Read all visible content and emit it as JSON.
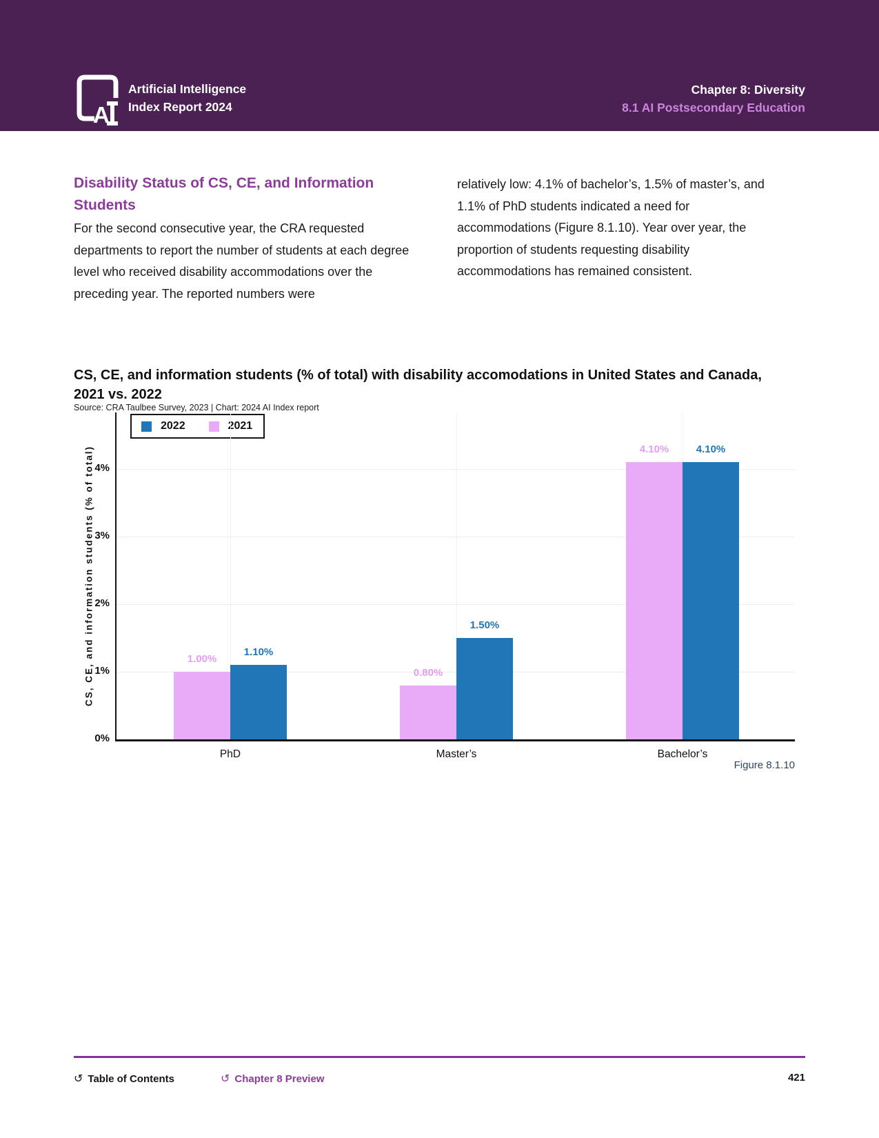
{
  "header": {
    "brand_line1": "Artificial Intelligence",
    "brand_line2": "Index Report 2024",
    "chapter": "Chapter 8: Diversity",
    "section": "8.1 AI Postsecondary Education",
    "bg_color": "#4a2152",
    "section_color": "#cb84dc"
  },
  "article": {
    "heading_line1": "Disability Status of CS, CE, and Information",
    "heading_line2": "Students",
    "heading_color": "#8d3b9b",
    "paragraph_left": "For the second consecutive year, the CRA requested departments to report the number of students at each degree level who received disability accommodations over the preceding year. The reported numbers were",
    "paragraph_right": "relatively low: 4.1% of bachelor’s, 1.5% of master’s, and 1.1% of PhD students indicated a need for accommodations (Figure 8.1.10). Year over year, the proportion of students requesting disability accommodations has remained consistent."
  },
  "figure": {
    "title_line1": "CS, CE, and information students (% of total) with disability accomodations in United States and Canada,",
    "title_line2": "2021 vs. 2022",
    "source": "Source: CRA Taulbee Survey, 2023 | Chart: 2024 AI Index report",
    "caption": "Figure 8.1.10"
  },
  "chart_data": {
    "type": "bar",
    "title": "CS, CE, and information students (% of total) with disability accomodations in United States and Canada, 2021 vs. 2022",
    "source": "Source: CRA Taulbee Survey, 2023 | Chart: 2024 AI Index report",
    "categories": [
      "PhD",
      "Master’s",
      "Bachelor’s"
    ],
    "series": [
      {
        "name": "2021",
        "color": "#e9abf7",
        "label_color": "#e49df3",
        "values": [
          1.0,
          0.8,
          4.1
        ],
        "labels": [
          "1.00%",
          "0.80%",
          "4.10%"
        ]
      },
      {
        "name": "2022",
        "color": "#2076b7",
        "label_color": "#2076b7",
        "values": [
          1.1,
          1.5,
          4.1
        ],
        "labels": [
          "1.10%",
          "1.50%",
          "4.10%"
        ]
      }
    ],
    "legend_order": [
      "2022",
      "2021"
    ],
    "ylabel": "CS, CE, and information students (% of total)",
    "yticks": [
      "0%",
      "1%",
      "2%",
      "3%",
      "4%"
    ],
    "ylim": [
      0,
      4.83
    ],
    "grid": true,
    "legend_position": "top-left"
  },
  "footer": {
    "toc_label": "Table of Contents",
    "preview_label": "Chapter 8 Preview",
    "page_number": "421",
    "line_color": "#7f3893",
    "link_color": "#8d3b9b"
  }
}
